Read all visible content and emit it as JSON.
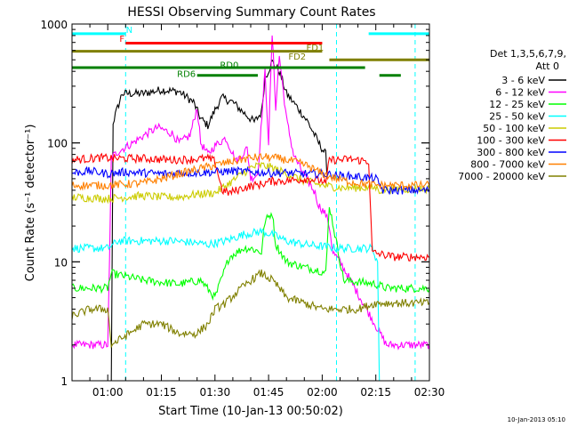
{
  "chart_data": {
    "type": "line",
    "title": "HESSI Observing Summary Count Rates",
    "xlabel": "Start Time (10-Jan-13 00:50:02)",
    "ylabel": "Count Rate (s⁻¹ detector⁻¹)",
    "y_scale": "log",
    "ylim": [
      1,
      1000
    ],
    "xlim_minutes": [
      50.0,
      150.0
    ],
    "x_ticks": [
      {
        "label": "01:00",
        "minute": 60
      },
      {
        "label": "01:15",
        "minute": 75
      },
      {
        "label": "01:30",
        "minute": 90
      },
      {
        "label": "01:45",
        "minute": 105
      },
      {
        "label": "02:00",
        "minute": 120
      },
      {
        "label": "02:15",
        "minute": 135
      },
      {
        "label": "02:30",
        "minute": 150
      }
    ],
    "y_ticks": [
      {
        "label": "1",
        "value": 1
      },
      {
        "label": "10",
        "value": 10
      },
      {
        "label": "100",
        "value": 100
      },
      {
        "label": "1000",
        "value": 1000
      }
    ],
    "legend_header": [
      "Det 1,3,5,6,7,9,",
      "Att 0"
    ],
    "legend_position": "right",
    "series": [
      {
        "name": "3 - 6 keV",
        "color": "#000000",
        "points": [
          [
            57,
            1
          ],
          [
            61,
            1
          ],
          [
            61.5,
            150
          ],
          [
            64,
            260
          ],
          [
            70,
            260
          ],
          [
            75,
            280
          ],
          [
            80,
            270
          ],
          [
            84,
            220
          ],
          [
            86,
            160
          ],
          [
            88,
            140
          ],
          [
            90,
            190
          ],
          [
            92,
            240
          ],
          [
            95,
            220
          ],
          [
            98,
            180
          ],
          [
            101,
            150
          ],
          [
            103,
            180
          ],
          [
            104,
            350
          ],
          [
            106,
            480
          ],
          [
            108,
            400
          ],
          [
            110,
            260
          ],
          [
            113,
            200
          ],
          [
            116,
            150
          ],
          [
            119,
            100
          ],
          [
            121,
            80
          ],
          [
            121.5,
            50
          ]
        ]
      },
      {
        "name": "6 - 12 keV",
        "color": "#ff00ff",
        "points": [
          [
            50,
            2
          ],
          [
            60,
            2
          ],
          [
            60.5,
            10
          ],
          [
            61,
            75
          ],
          [
            63,
            85
          ],
          [
            67,
            100
          ],
          [
            70,
            115
          ],
          [
            74,
            135
          ],
          [
            78,
            120
          ],
          [
            80,
            100
          ],
          [
            83,
            115
          ],
          [
            85,
            200
          ],
          [
            86,
            100
          ],
          [
            88,
            80
          ],
          [
            90,
            95
          ],
          [
            93,
            110
          ],
          [
            96,
            70
          ],
          [
            99,
            90
          ],
          [
            100,
            50
          ],
          [
            102,
            55
          ],
          [
            104,
            400
          ],
          [
            105,
            100
          ],
          [
            106,
            820
          ],
          [
            107,
            200
          ],
          [
            108,
            540
          ],
          [
            110,
            160
          ],
          [
            112,
            80
          ],
          [
            114,
            60
          ],
          [
            116,
            48
          ],
          [
            118,
            38
          ],
          [
            119,
            30
          ],
          [
            121,
            25
          ],
          [
            122,
            20
          ],
          [
            123,
            12
          ],
          [
            125,
            10
          ],
          [
            138,
            2
          ],
          [
            150,
            2
          ]
        ]
      },
      {
        "name": "12 - 25 keV",
        "color": "#00ff00",
        "points": [
          [
            50,
            6
          ],
          [
            60,
            6
          ],
          [
            61,
            8
          ],
          [
            70,
            7
          ],
          [
            80,
            6.5
          ],
          [
            86,
            7
          ],
          [
            90,
            5
          ],
          [
            94,
            11
          ],
          [
            98,
            13
          ],
          [
            100,
            13
          ],
          [
            103,
            12
          ],
          [
            104,
            22
          ],
          [
            106,
            26
          ],
          [
            107,
            14
          ],
          [
            110,
            10
          ],
          [
            115,
            9
          ],
          [
            119,
            8.5
          ],
          [
            121,
            8
          ],
          [
            122,
            30
          ],
          [
            126,
            7
          ],
          [
            135,
            6.5
          ],
          [
            138,
            6
          ],
          [
            150,
            6
          ]
        ]
      },
      {
        "name": "25 - 50 keV",
        "color": "#00ffff",
        "points": [
          [
            50,
            13
          ],
          [
            60,
            13
          ],
          [
            63,
            15
          ],
          [
            70,
            15
          ],
          [
            78,
            15
          ],
          [
            84,
            14.5
          ],
          [
            88,
            14
          ],
          [
            93,
            15
          ],
          [
            98,
            17
          ],
          [
            103,
            18
          ],
          [
            106,
            17
          ],
          [
            110,
            15
          ],
          [
            115,
            14
          ],
          [
            120,
            13.5
          ],
          [
            125,
            13
          ],
          [
            130,
            13
          ],
          [
            134,
            13
          ],
          [
            135.5,
            10
          ],
          [
            136,
            1
          ],
          [
            150,
            1
          ]
        ]
      },
      {
        "name": "50 - 100 keV",
        "color": "#cccc00",
        "points": [
          [
            50,
            35
          ],
          [
            60,
            34
          ],
          [
            65,
            35
          ],
          [
            70,
            36
          ],
          [
            75,
            35
          ],
          [
            80,
            35
          ],
          [
            85,
            37
          ],
          [
            90,
            38
          ],
          [
            95,
            48
          ],
          [
            100,
            62
          ],
          [
            103,
            65
          ],
          [
            106,
            62
          ],
          [
            110,
            55
          ],
          [
            115,
            48
          ],
          [
            120,
            44
          ],
          [
            125,
            42
          ],
          [
            130,
            42
          ],
          [
            135,
            42
          ],
          [
            136,
            40
          ],
          [
            140,
            41
          ],
          [
            150,
            41
          ]
        ]
      },
      {
        "name": "100 - 300 keV",
        "color": "#ff0000",
        "points": [
          [
            50,
            72
          ],
          [
            58,
            75
          ],
          [
            63,
            74
          ],
          [
            70,
            74
          ],
          [
            78,
            72
          ],
          [
            84,
            73
          ],
          [
            88,
            74
          ],
          [
            90,
            70
          ],
          [
            92,
            40
          ],
          [
            94,
            38
          ],
          [
            98,
            42
          ],
          [
            103,
            45
          ],
          [
            106,
            48
          ],
          [
            110,
            48
          ],
          [
            116,
            50
          ],
          [
            120,
            48
          ],
          [
            121,
            45
          ],
          [
            122,
            72
          ],
          [
            125,
            72
          ],
          [
            128,
            73
          ],
          [
            133,
            70
          ],
          [
            134,
            12
          ],
          [
            140,
            11
          ],
          [
            150,
            11
          ]
        ]
      },
      {
        "name": "300 - 800 keV",
        "color": "#0000ff",
        "points": [
          [
            50,
            56
          ],
          [
            55,
            58
          ],
          [
            60,
            55
          ],
          [
            65,
            57
          ],
          [
            70,
            56
          ],
          [
            75,
            55
          ],
          [
            80,
            56
          ],
          [
            85,
            56
          ],
          [
            90,
            57
          ],
          [
            95,
            58
          ],
          [
            100,
            57
          ],
          [
            105,
            56
          ],
          [
            110,
            56
          ],
          [
            115,
            55
          ],
          [
            120,
            55
          ],
          [
            125,
            53
          ],
          [
            130,
            52
          ],
          [
            135,
            50
          ],
          [
            137,
            40
          ],
          [
            140,
            40
          ],
          [
            150,
            40
          ]
        ]
      },
      {
        "name": "800 - 7000 keV",
        "color": "#ff8000",
        "points": [
          [
            50,
            44
          ],
          [
            60,
            44
          ],
          [
            65,
            45
          ],
          [
            70,
            46
          ],
          [
            75,
            50
          ],
          [
            80,
            55
          ],
          [
            85,
            60
          ],
          [
            90,
            65
          ],
          [
            95,
            70
          ],
          [
            100,
            75
          ],
          [
            104,
            76
          ],
          [
            108,
            74
          ],
          [
            112,
            70
          ],
          [
            116,
            64
          ],
          [
            120,
            55
          ],
          [
            124,
            50
          ],
          [
            128,
            47
          ],
          [
            132,
            45
          ],
          [
            136,
            44
          ],
          [
            140,
            44
          ],
          [
            150,
            44
          ]
        ]
      },
      {
        "name": "7000 - 20000 keV",
        "color": "#808000",
        "points": [
          [
            50,
            3.5
          ],
          [
            55,
            4
          ],
          [
            60,
            4
          ],
          [
            61,
            2
          ],
          [
            66,
            2.5
          ],
          [
            70,
            3
          ],
          [
            75,
            3
          ],
          [
            80,
            2.5
          ],
          [
            85,
            2.5
          ],
          [
            88,
            3
          ],
          [
            90,
            4
          ],
          [
            93,
            4.5
          ],
          [
            96,
            5.5
          ],
          [
            100,
            7
          ],
          [
            103,
            8
          ],
          [
            106,
            7
          ],
          [
            108,
            6
          ],
          [
            110,
            5
          ],
          [
            115,
            4.5
          ],
          [
            120,
            4
          ],
          [
            125,
            4
          ],
          [
            130,
            4
          ],
          [
            135,
            4.5
          ],
          [
            140,
            4.5
          ],
          [
            150,
            4.5
          ]
        ]
      }
    ],
    "flag_bars": [
      {
        "label": "N",
        "color": "#00ffff",
        "y_value": 830,
        "segments": [
          [
            50,
            65
          ],
          [
            133,
            150
          ]
        ]
      },
      {
        "label": "F",
        "color": "#ff0000",
        "y_value": 690,
        "segments": [
          [
            65,
            120
          ]
        ]
      },
      {
        "label": "FD1",
        "color": "#808000",
        "y_value": 590,
        "segments": [
          [
            50,
            120
          ]
        ]
      },
      {
        "label": "FD2",
        "color": "#808000",
        "y_value": 500,
        "segments": [
          [
            122,
            150
          ]
        ]
      },
      {
        "label": "RD0",
        "color": "#008000",
        "y_value": 430,
        "segments": [
          [
            50,
            132
          ]
        ]
      },
      {
        "label": "RD6",
        "color": "#008000",
        "y_value": 370,
        "segments": [
          [
            85,
            102
          ],
          [
            136,
            142
          ]
        ]
      }
    ],
    "annotations": [
      {
        "text": "N",
        "color": "#00ffff",
        "minute": 66,
        "y_value": 900
      },
      {
        "text": "F",
        "color": "#ff0000",
        "minute": 64,
        "y_value": 760
      },
      {
        "text": "FD1",
        "color": "#808000",
        "minute": 118,
        "y_value": 640
      },
      {
        "text": "FD2",
        "color": "#808000",
        "minute": 113,
        "y_value": 540
      },
      {
        "text": "RD0",
        "color": "#008000",
        "minute": 94,
        "y_value": 455
      },
      {
        "text": "RD6",
        "color": "#008000",
        "minute": 82,
        "y_value": 385
      }
    ],
    "vertical_markers": [
      {
        "minute": 65,
        "color": "#00ffff"
      },
      {
        "minute": 124,
        "color": "#00ffff"
      },
      {
        "minute": 146,
        "color": "#00ffff"
      }
    ],
    "footer": "10-Jan-2013 05:10"
  }
}
